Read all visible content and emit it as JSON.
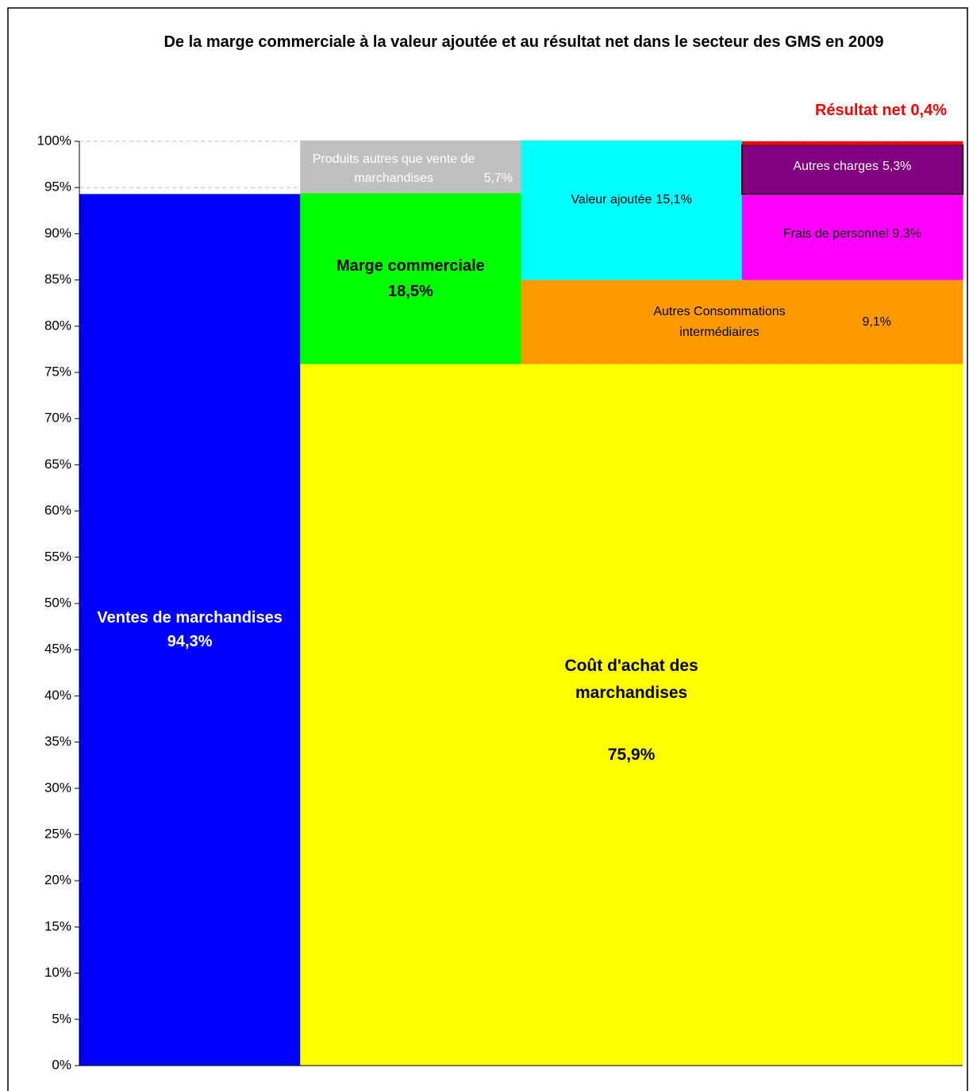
{
  "chart_data": {
    "type": "stacked_bar",
    "title": "De la marge commerciale à la valeur ajoutée et au résultat net dans le secteur des GMS en 2009",
    "categories": [
      null,
      null,
      null,
      null
    ],
    "series": [
      {
        "name": "Ventes de marchandises",
        "color": "#0000ff",
        "values": [
          94.3,
          null,
          null,
          null
        ],
        "value_labels": [
          "94,3%",
          null,
          null,
          null
        ]
      },
      {
        "name": "Coût d'achat des marchandises",
        "color": "#ffff00",
        "values": [
          null,
          75.9,
          75.9,
          75.9
        ],
        "value_labels": [
          null,
          "75,9%",
          null,
          null
        ]
      },
      {
        "name": "Marge commerciale",
        "color": "#00ff00",
        "values": [
          null,
          18.5,
          null,
          null
        ],
        "value_labels": [
          null,
          "18,5%",
          null,
          null
        ]
      },
      {
        "name": "Produits autres que vente de marchandises",
        "color": "#c0c0c0",
        "values": [
          null,
          5.7,
          null,
          null
        ],
        "value_labels": [
          null,
          "5,7%",
          null,
          null
        ]
      },
      {
        "name": "Autres Consommations intermédiaires",
        "color": "#ff9900",
        "values": [
          null,
          null,
          9.1,
          9.1
        ],
        "value_labels": [
          null,
          null,
          "9,1%",
          null
        ]
      },
      {
        "name": "Valeur ajoutée",
        "color": "#00ffff",
        "values": [
          null,
          null,
          15.1,
          null
        ],
        "value_labels": [
          null,
          null,
          "15,1%",
          null
        ]
      },
      {
        "name": "Frais de personnel",
        "color": "#ff00ff",
        "values": [
          null,
          null,
          null,
          9.3
        ],
        "value_labels": [
          null,
          null,
          null,
          "9,3%"
        ]
      },
      {
        "name": "Autres charges",
        "color": "#800080",
        "values": [
          null,
          null,
          null,
          5.3
        ],
        "value_labels": [
          null,
          null,
          null,
          "5,3%"
        ]
      },
      {
        "name": "Résultat net",
        "color": "#ff0000",
        "values": [
          null,
          null,
          null,
          0.4
        ],
        "value_labels": [
          null,
          null,
          null,
          "0,4%"
        ]
      }
    ],
    "ylim": [
      0,
      100
    ],
    "yticks": [
      {
        "value": 0,
        "label": "0%"
      },
      {
        "value": 5,
        "label": "5%"
      },
      {
        "value": 10,
        "label": "10%"
      },
      {
        "value": 15,
        "label": "15%"
      },
      {
        "value": 20,
        "label": "20%"
      },
      {
        "value": 25,
        "label": "25%"
      },
      {
        "value": 30,
        "label": "30%"
      },
      {
        "value": 35,
        "label": "35%"
      },
      {
        "value": 40,
        "label": "40%"
      },
      {
        "value": 45,
        "label": "45%"
      },
      {
        "value": 50,
        "label": "50%"
      },
      {
        "value": 55,
        "label": "55%"
      },
      {
        "value": 60,
        "label": "60%"
      },
      {
        "value": 65,
        "label": "65%"
      },
      {
        "value": 70,
        "label": "70%"
      },
      {
        "value": 75,
        "label": "75%"
      },
      {
        "value": 80,
        "label": "80%"
      },
      {
        "value": 85,
        "label": "85%"
      },
      {
        "value": 90,
        "label": "90%"
      },
      {
        "value": 95,
        "label": "95%"
      },
      {
        "value": 100,
        "label": "100%"
      }
    ],
    "grid": true
  }
}
